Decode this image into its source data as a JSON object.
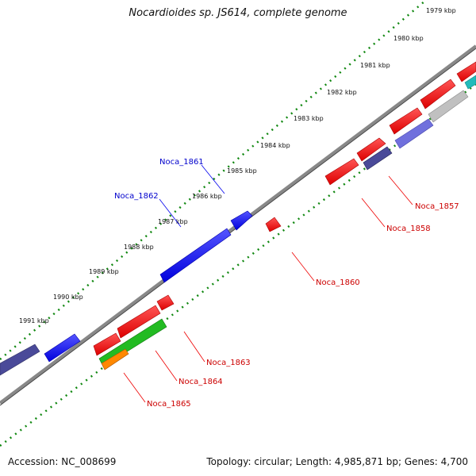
{
  "title": "Nocardioides sp. JS614, complete genome",
  "footer": {
    "accession": "Accession: NC_008699",
    "topology": "Topology: circular; Length: 4,985,871 bp; Genes: 4,700"
  },
  "colors": {
    "forward_gene": "#0000ee",
    "reverse_gene": "#ee0000",
    "green_gene": "#22bb22",
    "orange_gene": "#ff8800",
    "slate_gene": "#4a4a99",
    "lavender_gene": "#7070dd",
    "grey_gene": "#c0c0c0",
    "teal_gene": "#22bbbb",
    "backbone": "#888888",
    "ticks": "#118811"
  },
  "scale_labels": [
    "1979 kbp",
    "1980 kbp",
    "1981 kbp",
    "1982 kbp",
    "1983 kbp",
    "1984 kbp",
    "1985 kbp",
    "1986 kbp",
    "1987 kbp",
    "1988 kbp",
    "1989 kbp",
    "1990 kbp",
    "1991 kbp"
  ],
  "gene_labels_forward": [
    "Noca_1861",
    "Noca_1862"
  ],
  "gene_labels_reverse": [
    "Noca_1857",
    "Noca_1858",
    "Noca_1860",
    "Noca_1863",
    "Noca_1864",
    "Noca_1865"
  ]
}
